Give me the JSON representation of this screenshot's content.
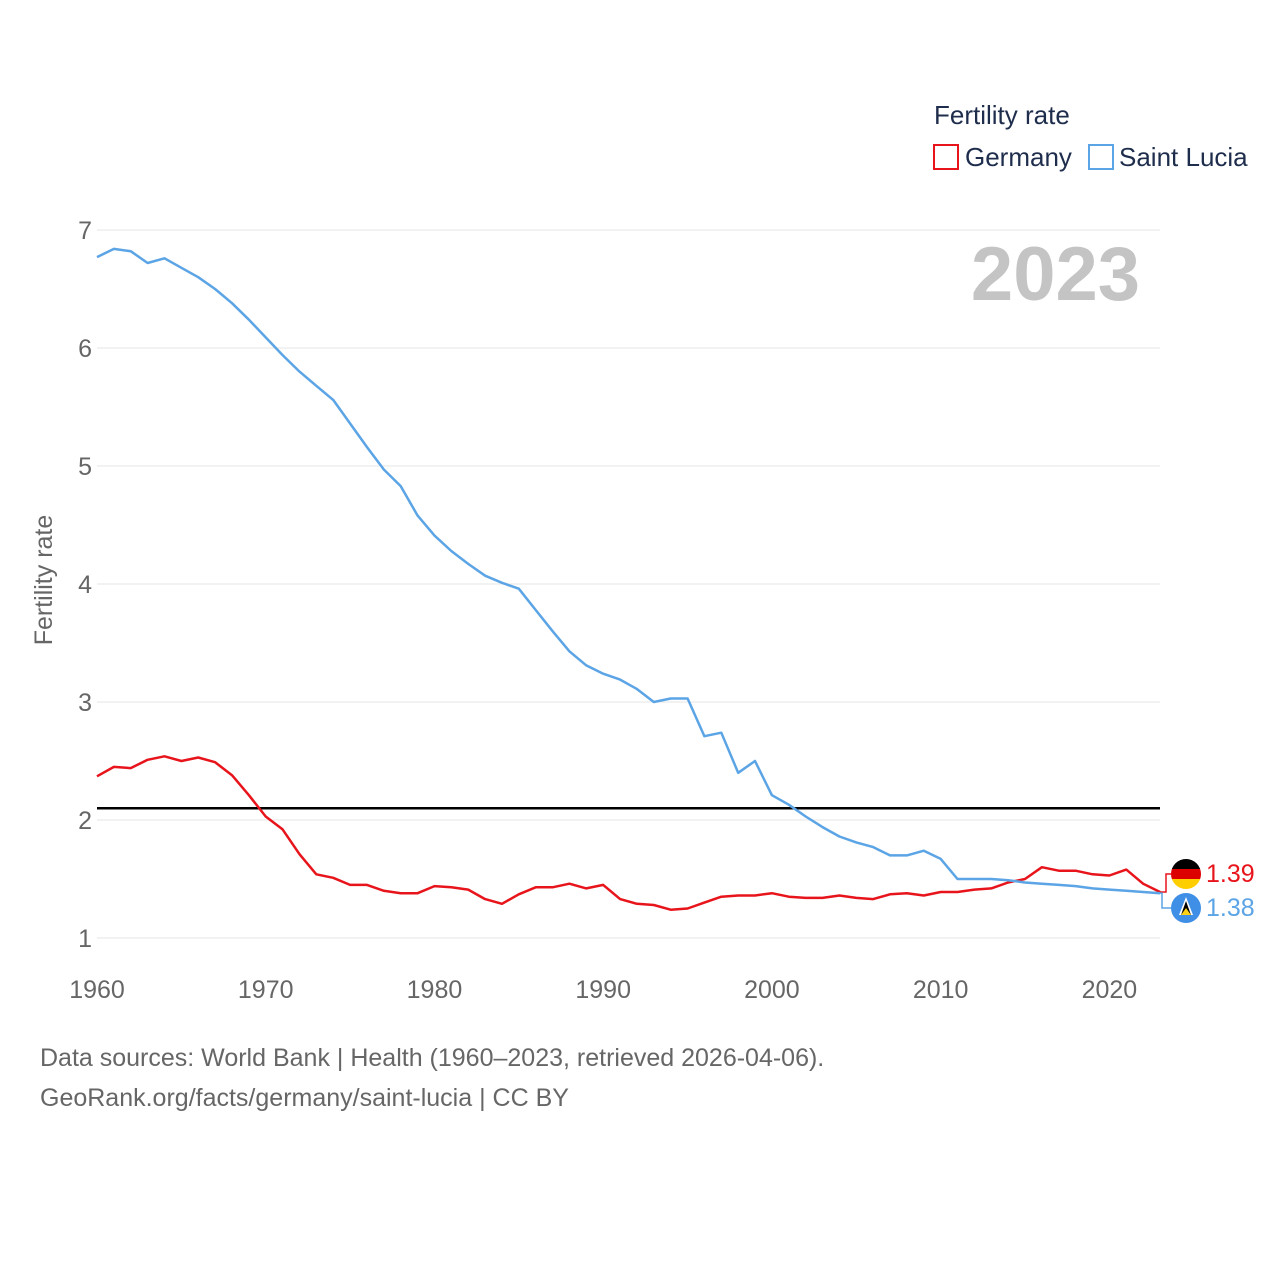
{
  "chart_data": {
    "type": "line",
    "year_label": "2023",
    "ylabel": "Fertility rate",
    "ylim": [
      1,
      7
    ],
    "xlim": [
      1960,
      2023
    ],
    "y_ticks": [
      "1",
      "2",
      "3",
      "4",
      "5",
      "6",
      "7"
    ],
    "x_ticks": [
      "1960",
      "1970",
      "1980",
      "1990",
      "2000",
      "2010",
      "2020"
    ],
    "legend": {
      "title": "Fertility rate",
      "position": "top-right"
    },
    "reference_line": {
      "y": 2.1,
      "color": "#000000"
    },
    "x": [
      1960,
      1961,
      1962,
      1963,
      1964,
      1965,
      1966,
      1967,
      1968,
      1969,
      1970,
      1971,
      1972,
      1973,
      1974,
      1975,
      1976,
      1977,
      1978,
      1979,
      1980,
      1981,
      1982,
      1983,
      1984,
      1985,
      1986,
      1987,
      1988,
      1989,
      1990,
      1991,
      1992,
      1993,
      1994,
      1995,
      1996,
      1997,
      1998,
      1999,
      2000,
      2001,
      2002,
      2003,
      2004,
      2005,
      2006,
      2007,
      2008,
      2009,
      2010,
      2011,
      2012,
      2013,
      2014,
      2015,
      2016,
      2017,
      2018,
      2019,
      2020,
      2021,
      2022,
      2023
    ],
    "series": [
      {
        "name": "Germany",
        "color": "#e8141b",
        "end_label": "1.39",
        "values": [
          2.37,
          2.45,
          2.44,
          2.51,
          2.54,
          2.5,
          2.53,
          2.49,
          2.38,
          2.21,
          2.03,
          1.92,
          1.71,
          1.54,
          1.51,
          1.45,
          1.45,
          1.4,
          1.38,
          1.38,
          1.44,
          1.43,
          1.41,
          1.33,
          1.29,
          1.37,
          1.43,
          1.43,
          1.46,
          1.42,
          1.45,
          1.33,
          1.29,
          1.28,
          1.24,
          1.25,
          1.3,
          1.35,
          1.36,
          1.36,
          1.38,
          1.35,
          1.34,
          1.34,
          1.36,
          1.34,
          1.33,
          1.37,
          1.38,
          1.36,
          1.39,
          1.39,
          1.41,
          1.42,
          1.47,
          1.5,
          1.6,
          1.57,
          1.57,
          1.54,
          1.53,
          1.58,
          1.46,
          1.39
        ]
      },
      {
        "name": "Saint Lucia",
        "color": "#5ba4e5",
        "end_label": "1.38",
        "values": [
          6.77,
          6.84,
          6.82,
          6.72,
          6.76,
          6.68,
          6.6,
          6.5,
          6.38,
          6.24,
          6.09,
          5.94,
          5.8,
          5.68,
          5.56,
          5.36,
          5.16,
          4.97,
          4.83,
          4.58,
          4.41,
          4.28,
          4.17,
          4.07,
          4.01,
          3.96,
          3.78,
          3.6,
          3.43,
          3.31,
          3.24,
          3.19,
          3.11,
          3.0,
          3.03,
          3.03,
          2.71,
          2.74,
          2.4,
          2.5,
          2.21,
          2.13,
          2.03,
          1.94,
          1.86,
          1.81,
          1.77,
          1.7,
          1.7,
          1.74,
          1.67,
          1.5,
          1.5,
          1.5,
          1.49,
          1.47,
          1.46,
          1.45,
          1.44,
          1.42,
          1.41,
          1.4,
          1.39,
          1.38
        ]
      }
    ]
  },
  "footer": {
    "line1": "Data sources: World Bank | Health (1960–2023, retrieved 2026-04-06).",
    "line2": "GeoRank.org/facts/germany/saint-lucia | CC BY"
  }
}
